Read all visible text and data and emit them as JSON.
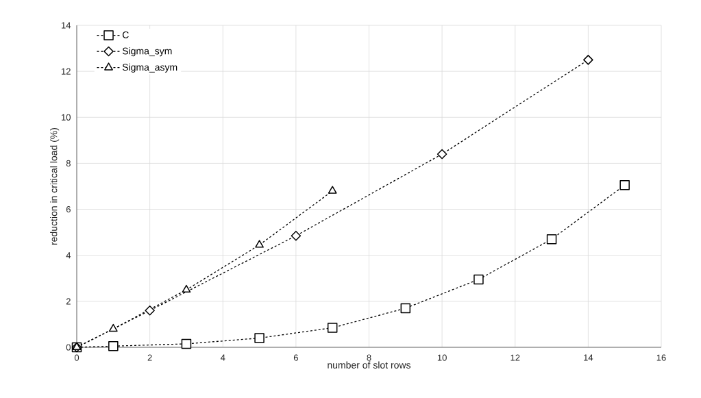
{
  "chart_data": {
    "type": "line",
    "xlabel": "number of slot rows",
    "ylabel": "reduction in critical load (%)",
    "xlim": [
      0,
      16
    ],
    "xticks": [
      0,
      2,
      4,
      6,
      8,
      10,
      12,
      14,
      16
    ],
    "ylim": [
      0,
      14
    ],
    "yticks": [
      0,
      2,
      4,
      6,
      8,
      10,
      12,
      14
    ],
    "grid": true,
    "legend": "top left",
    "line_style": "dashed",
    "series": [
      {
        "name": "C",
        "color": "#000000",
        "marker": "square",
        "x": [
          0,
          1,
          3,
          5,
          7,
          9,
          11,
          13,
          15
        ],
        "values": [
          0,
          0.05,
          0.15,
          0.4,
          0.85,
          1.7,
          2.95,
          4.7,
          7.05
        ]
      },
      {
        "name": "Sigma_sym",
        "color": "#000000",
        "marker": "diamond",
        "x": [
          0,
          2,
          6,
          10,
          14
        ],
        "values": [
          0,
          1.6,
          4.85,
          8.4,
          12.5
        ]
      },
      {
        "name": "Sigma_asym",
        "color": "#000000",
        "marker": "triangle",
        "x": [
          0,
          1,
          3,
          5,
          7
        ],
        "values": [
          0,
          0.8,
          2.5,
          4.45,
          6.8
        ]
      }
    ]
  }
}
